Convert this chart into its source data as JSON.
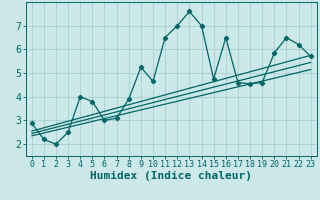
{
  "title": "",
  "xlabel": "Humidex (Indice chaleur)",
  "ylabel": "",
  "bg_color": "#cce8e8",
  "grid_color": "#aacece",
  "line_color": "#006666",
  "x_data": [
    0,
    1,
    2,
    3,
    4,
    5,
    6,
    7,
    8,
    9,
    10,
    11,
    12,
    13,
    14,
    15,
    16,
    17,
    18,
    19,
    20,
    21,
    22,
    23
  ],
  "y_data": [
    2.9,
    2.2,
    2.0,
    2.5,
    4.0,
    3.8,
    3.0,
    3.1,
    3.9,
    5.25,
    4.65,
    6.5,
    7.0,
    7.6,
    7.0,
    4.75,
    6.5,
    4.6,
    4.55,
    4.6,
    5.85,
    6.5,
    6.2,
    5.7
  ],
  "reg_lines": [
    {
      "x0": 0,
      "y0": 2.55,
      "x1": 23,
      "y1": 5.75
    },
    {
      "x0": 0,
      "y0": 2.45,
      "x1": 23,
      "y1": 5.45
    },
    {
      "x0": 0,
      "y0": 2.35,
      "x1": 23,
      "y1": 5.15
    }
  ],
  "xlim": [
    -0.5,
    23.5
  ],
  "ylim": [
    1.5,
    8.0
  ],
  "yticks": [
    2,
    3,
    4,
    5,
    6,
    7
  ],
  "xticks": [
    0,
    1,
    2,
    3,
    4,
    5,
    6,
    7,
    8,
    9,
    10,
    11,
    12,
    13,
    14,
    15,
    16,
    17,
    18,
    19,
    20,
    21,
    22,
    23
  ],
  "tick_fontsize": 6,
  "xlabel_fontsize": 8
}
